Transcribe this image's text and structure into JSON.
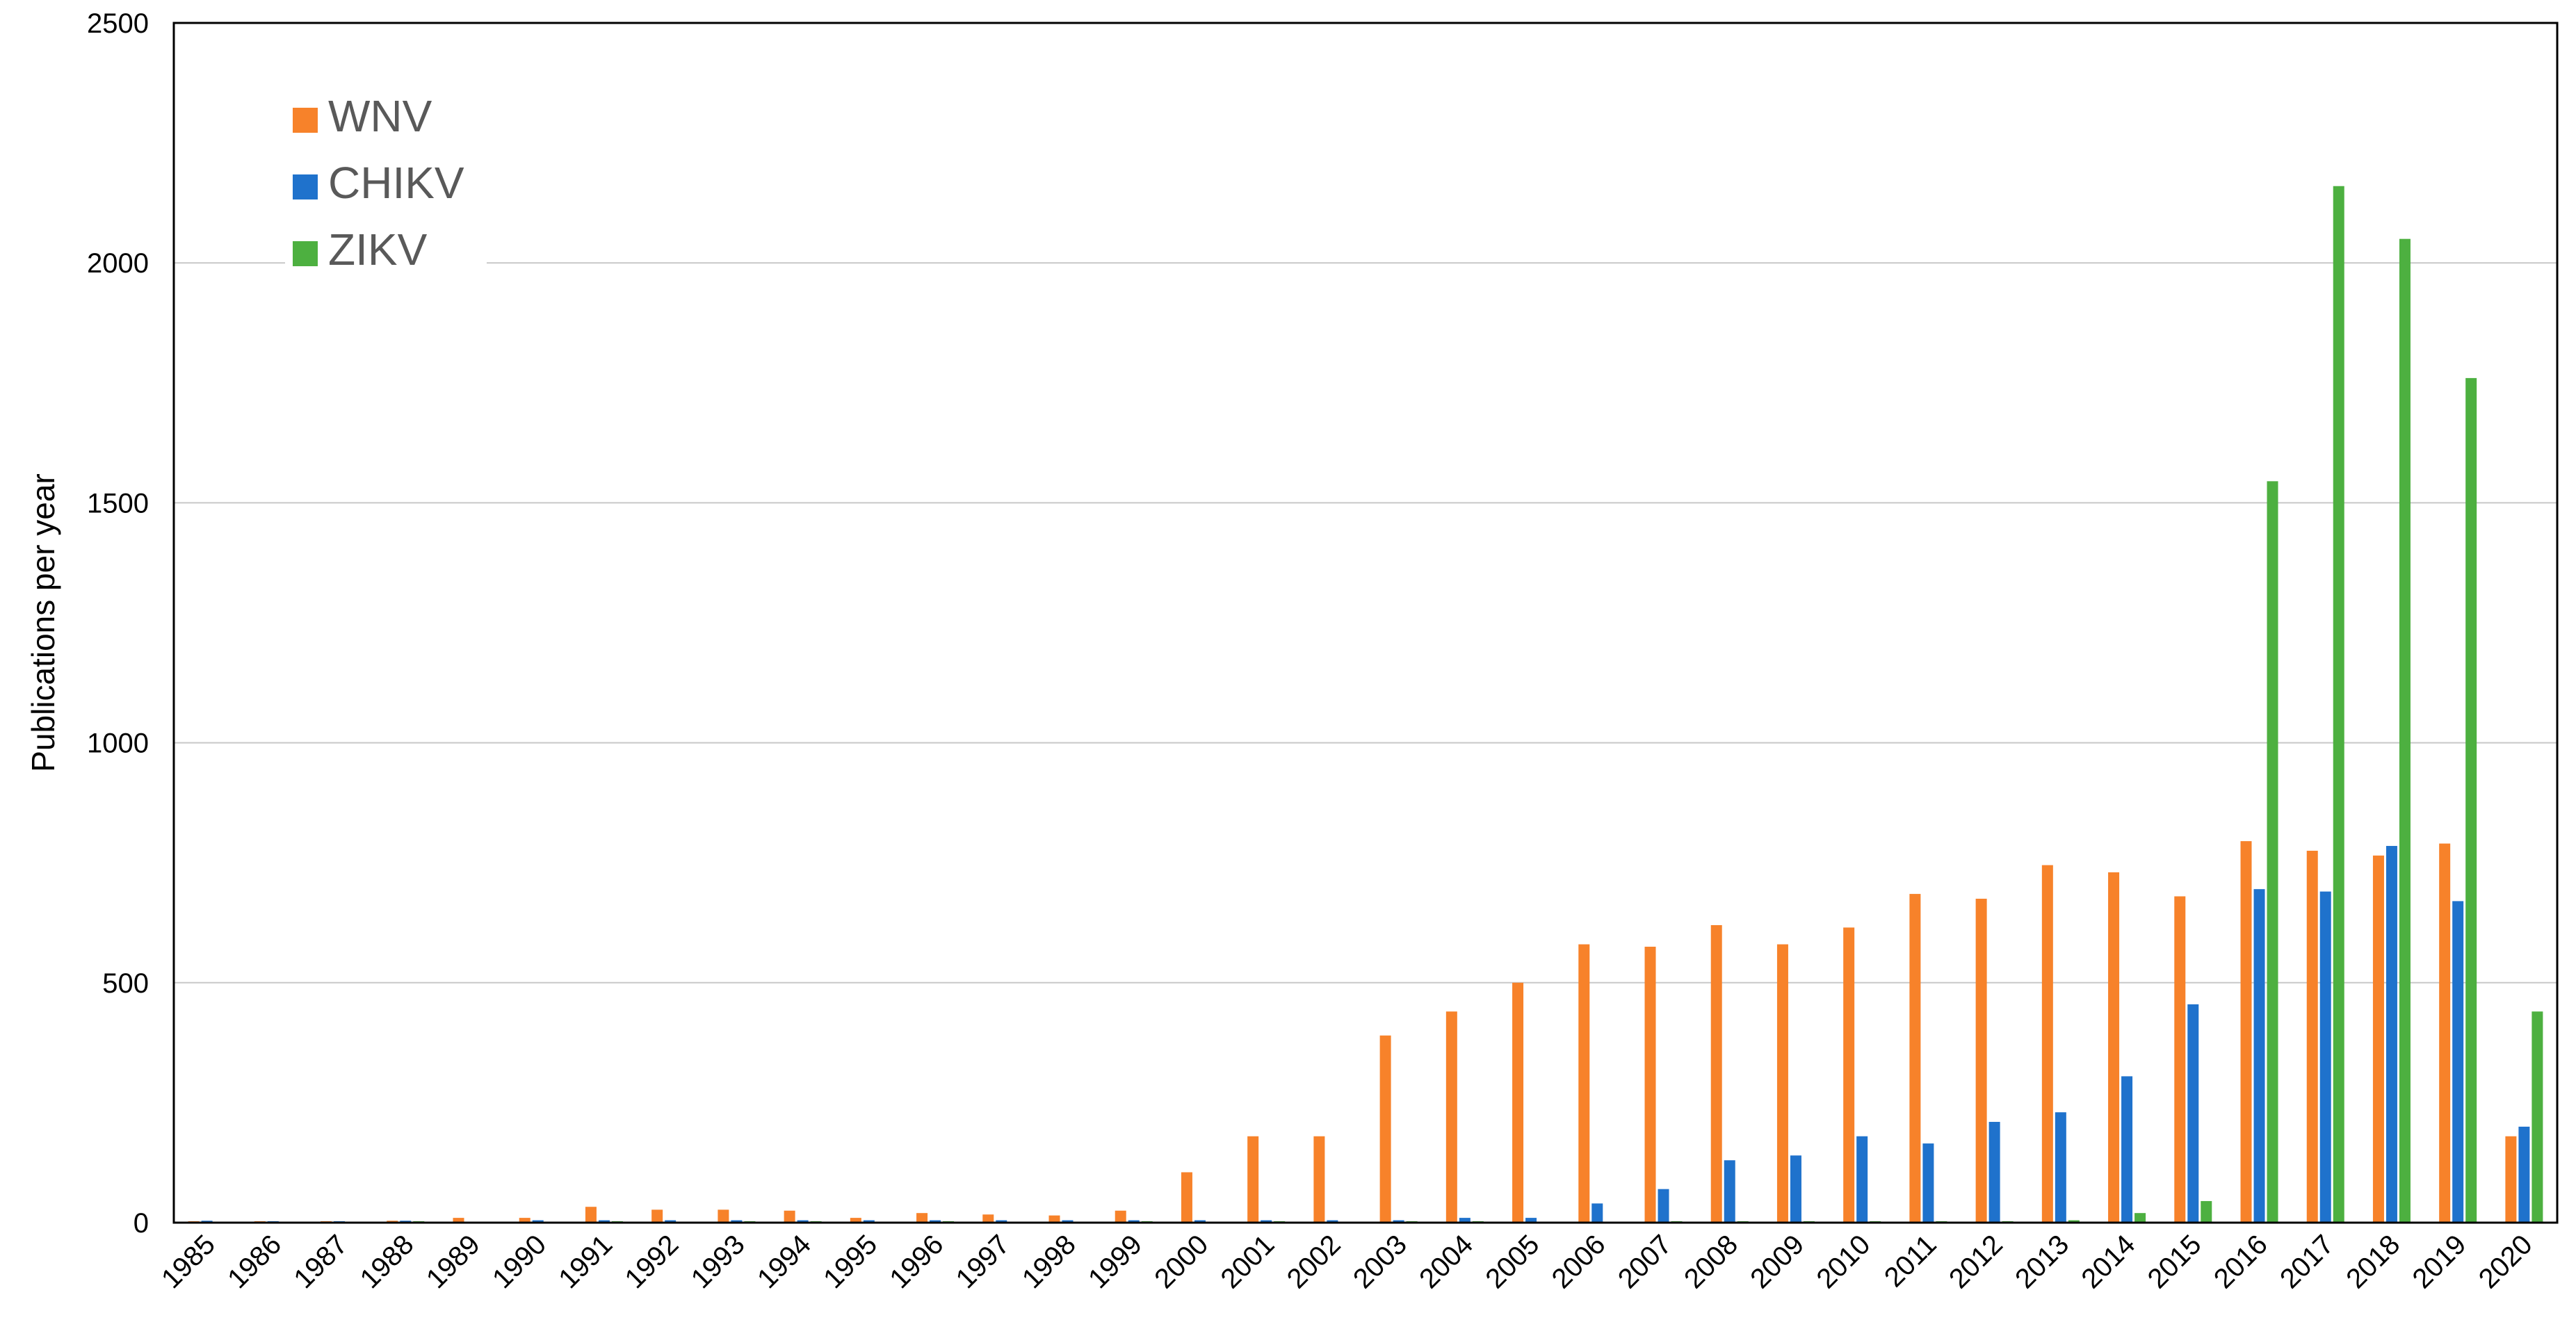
{
  "chart_data": {
    "type": "bar",
    "title": "",
    "xlabel": "",
    "ylabel": "Publications per year",
    "ylim": [
      0,
      2500
    ],
    "yticks": [
      0,
      500,
      1000,
      1500,
      2000,
      2500
    ],
    "grid": "horizontal",
    "legend_position": "top-left",
    "categories": [
      "1985",
      "1986",
      "1987",
      "1988",
      "1989",
      "1990",
      "1991",
      "1992",
      "1993",
      "1994",
      "1995",
      "1996",
      "1997",
      "1998",
      "1999",
      "2000",
      "2001",
      "2002",
      "2003",
      "2004",
      "2005",
      "2006",
      "2007",
      "2008",
      "2009",
      "2010",
      "2011",
      "2012",
      "2013",
      "2014",
      "2015",
      "2016",
      "2017",
      "2018",
      "2019",
      "2020"
    ],
    "series": [
      {
        "name": "WNV",
        "color": "#F7822A",
        "values": [
          3,
          3,
          3,
          4,
          10,
          10,
          33,
          27,
          27,
          25,
          10,
          20,
          17,
          15,
          25,
          105,
          180,
          180,
          390,
          440,
          500,
          580,
          575,
          620,
          580,
          615,
          685,
          675,
          745,
          730,
          680,
          795,
          775,
          765,
          790,
          180
        ]
      },
      {
        "name": "CHIKV",
        "color": "#1F72CC",
        "values": [
          4,
          3,
          3,
          4,
          0,
          5,
          5,
          5,
          5,
          5,
          5,
          5,
          5,
          5,
          5,
          5,
          5,
          5,
          5,
          10,
          10,
          40,
          70,
          130,
          140,
          180,
          165,
          210,
          230,
          305,
          455,
          695,
          690,
          785,
          670,
          200
        ]
      },
      {
        "name": "ZIKV",
        "color": "#4DB040",
        "values": [
          0,
          0,
          0,
          3,
          0,
          0,
          3,
          0,
          3,
          3,
          0,
          3,
          0,
          0,
          3,
          0,
          3,
          0,
          3,
          3,
          0,
          0,
          3,
          3,
          3,
          3,
          3,
          3,
          5,
          20,
          45,
          1545,
          2160,
          2050,
          1760,
          440
        ]
      }
    ]
  }
}
